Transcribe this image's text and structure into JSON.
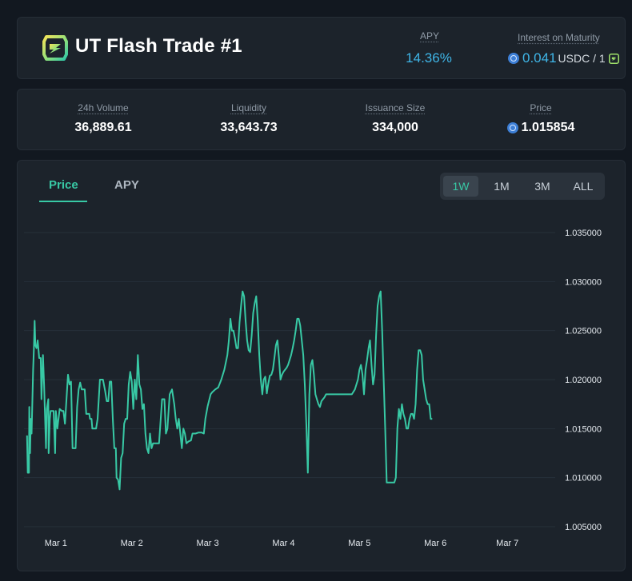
{
  "header": {
    "title": "UT Flash Trade #1",
    "apy_label": "APY",
    "apy_value": "14.36%",
    "interest_label": "Interest on Maturity",
    "interest_value": "0.041",
    "interest_unit": "USDC / 1"
  },
  "stats": [
    {
      "label": "24h Volume",
      "value": "36,889.61"
    },
    {
      "label": "Liquidity",
      "value": "33,643.73"
    },
    {
      "label": "Issuance Size",
      "value": "334,000"
    },
    {
      "label": "Price",
      "value": "1.015854"
    }
  ],
  "tabs": {
    "price": "Price",
    "apy": "APY",
    "active": "Price"
  },
  "ranges": {
    "items": [
      "1W",
      "1M",
      "3M",
      "ALL"
    ],
    "active": "1W"
  },
  "colors": {
    "accent": "#38c9a5",
    "apy": "#3fb6e8",
    "background": "#121820",
    "card": "#1c232b"
  },
  "chart_data": {
    "type": "line",
    "title": "",
    "xlabel": "",
    "ylabel": "",
    "series_name": "Price",
    "x_ticks": [
      {
        "label": "Mar 1",
        "x": 1.0
      },
      {
        "label": "Mar 2",
        "x": 2.0
      },
      {
        "label": "Mar 3",
        "x": 3.0
      },
      {
        "label": "Mar 4",
        "x": 4.0
      },
      {
        "label": "Mar 5",
        "x": 5.0
      },
      {
        "label": "Mar 6",
        "x": 6.0
      },
      {
        "label": "Mar 7",
        "x": 6.95
      }
    ],
    "y_ticks": [
      "1.035000",
      "1.030000",
      "1.025000",
      "1.020000",
      "1.015000",
      "1.010000",
      "1.005000"
    ],
    "xlim": [
      0.58,
      7.58
    ],
    "ylim": [
      1.005,
      1.035
    ],
    "grid": true,
    "points": [
      [
        0.62,
        1.0143
      ],
      [
        0.63,
        1.0105
      ],
      [
        0.645,
        1.0105
      ],
      [
        0.65,
        1.0172
      ],
      [
        0.66,
        1.0125
      ],
      [
        0.67,
        1.016
      ],
      [
        0.68,
        1.0145
      ],
      [
        0.7,
        1.021
      ],
      [
        0.71,
        1.023
      ],
      [
        0.72,
        1.026
      ],
      [
        0.73,
        1.0235
      ],
      [
        0.745,
        1.0232
      ],
      [
        0.76,
        1.024
      ],
      [
        0.78,
        1.0222
      ],
      [
        0.8,
        1.0222
      ],
      [
        0.81,
        1.018
      ],
      [
        0.83,
        1.0225
      ],
      [
        0.845,
        1.0195
      ],
      [
        0.87,
        1.013
      ],
      [
        0.88,
        1.017
      ],
      [
        0.9,
        1.018
      ],
      [
        0.905,
        1.0125
      ],
      [
        0.92,
        1.016
      ],
      [
        0.93,
        1.0168
      ],
      [
        0.97,
        1.0168
      ],
      [
        0.99,
        1.0125
      ],
      [
        1.0,
        1.0168
      ],
      [
        1.02,
        1.015
      ],
      [
        1.05,
        1.017
      ],
      [
        1.08,
        1.0168
      ],
      [
        1.1,
        1.0168
      ],
      [
        1.12,
        1.0155
      ],
      [
        1.16,
        1.0205
      ],
      [
        1.18,
        1.0195
      ],
      [
        1.2,
        1.0198
      ],
      [
        1.22,
        1.013
      ],
      [
        1.26,
        1.013
      ],
      [
        1.28,
        1.0172
      ],
      [
        1.3,
        1.019
      ],
      [
        1.32,
        1.0197
      ],
      [
        1.34,
        1.019
      ],
      [
        1.38,
        1.019
      ],
      [
        1.4,
        1.0165
      ],
      [
        1.44,
        1.0165
      ],
      [
        1.45,
        1.016
      ],
      [
        1.47,
        1.016
      ],
      [
        1.48,
        1.015
      ],
      [
        1.53,
        1.015
      ],
      [
        1.55,
        1.016
      ],
      [
        1.58,
        1.02
      ],
      [
        1.6,
        1.02
      ],
      [
        1.62,
        1.02
      ],
      [
        1.65,
        1.0188
      ],
      [
        1.67,
        1.0178
      ],
      [
        1.69,
        1.0178
      ],
      [
        1.71,
        1.0198
      ],
      [
        1.73,
        1.0198
      ],
      [
        1.75,
        1.016
      ],
      [
        1.77,
        1.013
      ],
      [
        1.79,
        1.013
      ],
      [
        1.8,
        1.01
      ],
      [
        1.82,
        1.0098
      ],
      [
        1.84,
        1.0088
      ],
      [
        1.86,
        1.012
      ],
      [
        1.88,
        1.0125
      ],
      [
        1.9,
        1.0155
      ],
      [
        1.92,
        1.016
      ],
      [
        1.94,
        1.016
      ],
      [
        1.96,
        1.0195
      ],
      [
        1.98,
        1.0208
      ],
      [
        2.0,
        1.0198
      ],
      [
        2.02,
        1.017
      ],
      [
        2.04,
        1.02
      ],
      [
        2.06,
        1.018
      ],
      [
        2.08,
        1.0225
      ],
      [
        2.1,
        1.0195
      ],
      [
        2.12,
        1.019
      ],
      [
        2.14,
        1.017
      ],
      [
        2.16,
        1.0175
      ],
      [
        2.18,
        1.0145
      ],
      [
        2.2,
        1.013
      ],
      [
        2.22,
        1.0125
      ],
      [
        2.24,
        1.0145
      ],
      [
        2.26,
        1.013
      ],
      [
        2.28,
        1.0135
      ],
      [
        2.36,
        1.0135
      ],
      [
        2.4,
        1.018
      ],
      [
        2.43,
        1.018
      ],
      [
        2.45,
        1.0145
      ],
      [
        2.47,
        1.015
      ],
      [
        2.5,
        1.0185
      ],
      [
        2.53,
        1.019
      ],
      [
        2.56,
        1.0175
      ],
      [
        2.58,
        1.016
      ],
      [
        2.6,
        1.015
      ],
      [
        2.62,
        1.016
      ],
      [
        2.64,
        1.0145
      ],
      [
        2.66,
        1.013
      ],
      [
        2.68,
        1.015
      ],
      [
        2.7,
        1.0145
      ],
      [
        2.72,
        1.0135
      ],
      [
        2.75,
        1.0137
      ],
      [
        2.78,
        1.0138
      ],
      [
        2.8,
        1.0145
      ],
      [
        2.84,
        1.0145
      ],
      [
        2.88,
        1.0146
      ],
      [
        2.92,
        1.0146
      ],
      [
        2.95,
        1.0145
      ],
      [
        2.97,
        1.016
      ],
      [
        3.0,
        1.0173
      ],
      [
        3.04,
        1.0185
      ],
      [
        3.06,
        1.0187
      ],
      [
        3.1,
        1.019
      ],
      [
        3.14,
        1.0192
      ],
      [
        3.18,
        1.02
      ],
      [
        3.22,
        1.021
      ],
      [
        3.26,
        1.0225
      ],
      [
        3.28,
        1.024
      ],
      [
        3.3,
        1.0262
      ],
      [
        3.32,
        1.025
      ],
      [
        3.34,
        1.025
      ],
      [
        3.36,
        1.0242
      ],
      [
        3.38,
        1.0232
      ],
      [
        3.4,
        1.0232
      ],
      [
        3.42,
        1.0258
      ],
      [
        3.44,
        1.0275
      ],
      [
        3.46,
        1.029
      ],
      [
        3.48,
        1.0285
      ],
      [
        3.5,
        1.026
      ],
      [
        3.52,
        1.024
      ],
      [
        3.54,
        1.023
      ],
      [
        3.56,
        1.0228
      ],
      [
        3.58,
        1.0245
      ],
      [
        3.6,
        1.0268
      ],
      [
        3.62,
        1.0278
      ],
      [
        3.64,
        1.0285
      ],
      [
        3.66,
        1.026
      ],
      [
        3.68,
        1.0225
      ],
      [
        3.7,
        1.02
      ],
      [
        3.72,
        1.0185
      ],
      [
        3.74,
        1.02
      ],
      [
        3.76,
        1.0203
      ],
      [
        3.78,
        1.0186
      ],
      [
        3.8,
        1.0196
      ],
      [
        3.82,
        1.0204
      ],
      [
        3.84,
        1.0205
      ],
      [
        3.86,
        1.021
      ],
      [
        3.88,
        1.0222
      ],
      [
        3.9,
        1.0235
      ],
      [
        3.92,
        1.024
      ],
      [
        3.94,
        1.0222
      ],
      [
        3.96,
        1.02
      ],
      [
        3.98,
        1.0205
      ],
      [
        4.0,
        1.0208
      ],
      [
        4.02,
        1.021
      ],
      [
        4.04,
        1.0212
      ],
      [
        4.06,
        1.0215
      ],
      [
        4.08,
        1.022
      ],
      [
        4.1,
        1.0225
      ],
      [
        4.12,
        1.0232
      ],
      [
        4.14,
        1.024
      ],
      [
        4.16,
        1.025
      ],
      [
        4.18,
        1.0262
      ],
      [
        4.2,
        1.0262
      ],
      [
        4.22,
        1.0255
      ],
      [
        4.24,
        1.024
      ],
      [
        4.26,
        1.0225
      ],
      [
        4.28,
        1.0195
      ],
      [
        4.3,
        1.0155
      ],
      [
        4.32,
        1.0105
      ],
      [
        4.34,
        1.0185
      ],
      [
        4.36,
        1.0215
      ],
      [
        4.38,
        1.022
      ],
      [
        4.4,
        1.0205
      ],
      [
        4.42,
        1.0185
      ],
      [
        4.44,
        1.018
      ],
      [
        4.46,
        1.0175
      ],
      [
        4.48,
        1.0172
      ],
      [
        4.5,
        1.0178
      ],
      [
        4.52,
        1.018
      ],
      [
        4.54,
        1.0182
      ],
      [
        4.56,
        1.0185
      ],
      [
        4.58,
        1.0185
      ],
      [
        4.62,
        1.0185
      ],
      [
        4.66,
        1.0185
      ],
      [
        4.7,
        1.0185
      ],
      [
        4.74,
        1.0185
      ],
      [
        4.78,
        1.0185
      ],
      [
        4.82,
        1.0185
      ],
      [
        4.86,
        1.0185
      ],
      [
        4.9,
        1.0185
      ],
      [
        4.94,
        1.019
      ],
      [
        4.98,
        1.02
      ],
      [
        5.0,
        1.021
      ],
      [
        5.02,
        1.0215
      ],
      [
        5.04,
        1.0205
      ],
      [
        5.06,
        1.0185
      ],
      [
        5.08,
        1.021
      ],
      [
        5.1,
        1.022
      ],
      [
        5.12,
        1.0232
      ],
      [
        5.14,
        1.024
      ],
      [
        5.16,
        1.0215
      ],
      [
        5.18,
        1.0195
      ],
      [
        5.2,
        1.0205
      ],
      [
        5.22,
        1.0245
      ],
      [
        5.24,
        1.0275
      ],
      [
        5.26,
        1.0285
      ],
      [
        5.28,
        1.029
      ],
      [
        5.3,
        1.025
      ],
      [
        5.32,
        1.02
      ],
      [
        5.34,
        1.015
      ],
      [
        5.36,
        1.0095
      ],
      [
        5.38,
        1.0095
      ],
      [
        5.44,
        1.0095
      ],
      [
        5.46,
        1.0095
      ],
      [
        5.48,
        1.01
      ],
      [
        5.5,
        1.015
      ],
      [
        5.52,
        1.017
      ],
      [
        5.54,
        1.016
      ],
      [
        5.56,
        1.0175
      ],
      [
        5.58,
        1.0165
      ],
      [
        5.6,
        1.016
      ],
      [
        5.62,
        1.015
      ],
      [
        5.64,
        1.015
      ],
      [
        5.66,
        1.016
      ],
      [
        5.68,
        1.0165
      ],
      [
        5.7,
        1.0165
      ],
      [
        5.72,
        1.016
      ],
      [
        5.74,
        1.0175
      ],
      [
        5.76,
        1.021
      ],
      [
        5.78,
        1.023
      ],
      [
        5.8,
        1.023
      ],
      [
        5.82,
        1.0225
      ],
      [
        5.84,
        1.02
      ],
      [
        5.86,
        1.019
      ],
      [
        5.88,
        1.018
      ],
      [
        5.9,
        1.0175
      ],
      [
        5.92,
        1.0175
      ],
      [
        5.94,
        1.016
      ],
      [
        5.96,
        1.016
      ]
    ]
  }
}
